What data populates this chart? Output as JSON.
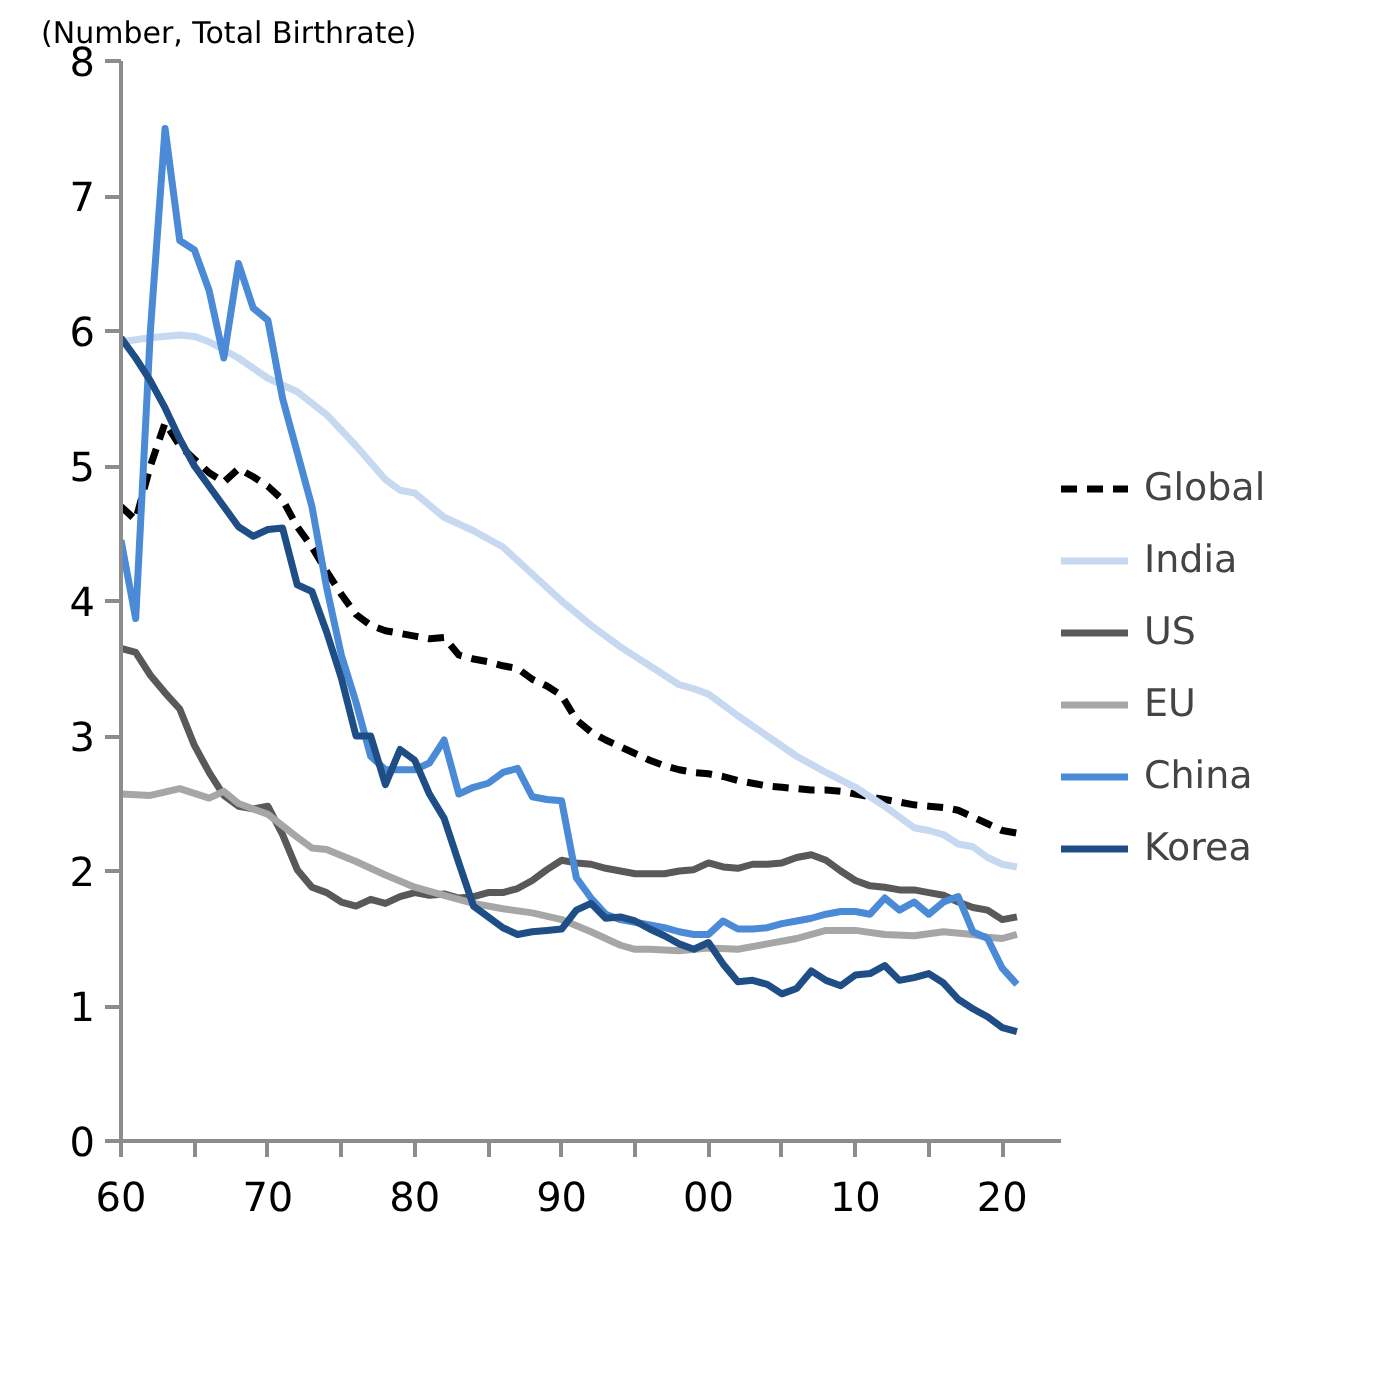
{
  "chart_data": {
    "type": "line",
    "ylabel": "(Number, Total Birthrate)",
    "xlim": [
      1960,
      2024
    ],
    "ylim": [
      0,
      8
    ],
    "xticks": [
      {
        "value": 1960,
        "label": "60"
      },
      {
        "value": 1965,
        "label": null
      },
      {
        "value": 1970,
        "label": "70"
      },
      {
        "value": 1975,
        "label": null
      },
      {
        "value": 1980,
        "label": "80"
      },
      {
        "value": 1985,
        "label": null
      },
      {
        "value": 1990,
        "label": "90"
      },
      {
        "value": 1995,
        "label": null
      },
      {
        "value": 2000,
        "label": "00"
      },
      {
        "value": 2005,
        "label": null
      },
      {
        "value": 2010,
        "label": "10"
      },
      {
        "value": 2015,
        "label": null
      },
      {
        "value": 2020,
        "label": "20"
      }
    ],
    "yticks": [
      0,
      1,
      2,
      3,
      4,
      5,
      6,
      7,
      8
    ],
    "grid": false,
    "legend": "right",
    "marker": "none",
    "series": [
      {
        "name": "Global",
        "color": "#000000",
        "line_style": "dashed",
        "x": [
          1960,
          1961,
          1962,
          1963,
          1964,
          1965,
          1966,
          1967,
          1968,
          1969,
          1970,
          1971,
          1972,
          1973,
          1974,
          1975,
          1976,
          1977,
          1978,
          1979,
          1980,
          1981,
          1982,
          1983,
          1984,
          1985,
          1986,
          1987,
          1988,
          1989,
          1990,
          1991,
          1992,
          1993,
          1994,
          1995,
          1996,
          1997,
          1998,
          1999,
          2000,
          2001,
          2002,
          2003,
          2004,
          2005,
          2006,
          2007,
          2008,
          2009,
          2010,
          2011,
          2012,
          2013,
          2014,
          2015,
          2016,
          2017,
          2018,
          2019,
          2020,
          2021
        ],
        "values": [
          4.7,
          4.6,
          5.0,
          5.32,
          5.15,
          5.05,
          4.95,
          4.88,
          4.98,
          4.92,
          4.85,
          4.75,
          4.55,
          4.4,
          4.22,
          4.05,
          3.9,
          3.82,
          3.78,
          3.76,
          3.74,
          3.72,
          3.73,
          3.6,
          3.57,
          3.55,
          3.52,
          3.5,
          3.42,
          3.37,
          3.3,
          3.12,
          3.03,
          2.97,
          2.92,
          2.87,
          2.82,
          2.78,
          2.75,
          2.73,
          2.72,
          2.7,
          2.67,
          2.65,
          2.63,
          2.62,
          2.61,
          2.6,
          2.6,
          2.59,
          2.57,
          2.55,
          2.53,
          2.51,
          2.49,
          2.48,
          2.47,
          2.45,
          2.4,
          2.35,
          2.3,
          2.28
        ]
      },
      {
        "name": "India",
        "color": "#c6d9f0",
        "line_style": "solid",
        "x": [
          1960,
          1962,
          1964,
          1965,
          1966,
          1968,
          1970,
          1972,
          1974,
          1976,
          1978,
          1979,
          1980,
          1982,
          1984,
          1986,
          1988,
          1990,
          1992,
          1994,
          1996,
          1998,
          1999,
          2000,
          2002,
          2004,
          2006,
          2008,
          2010,
          2012,
          2014,
          2015,
          2016,
          2017,
          2018,
          2019,
          2020,
          2021
        ],
        "values": [
          5.92,
          5.95,
          5.97,
          5.96,
          5.92,
          5.8,
          5.65,
          5.55,
          5.38,
          5.15,
          4.9,
          4.82,
          4.8,
          4.62,
          4.52,
          4.4,
          4.2,
          4.0,
          3.82,
          3.66,
          3.52,
          3.38,
          3.35,
          3.31,
          3.15,
          3.0,
          2.85,
          2.73,
          2.62,
          2.48,
          2.32,
          2.3,
          2.27,
          2.2,
          2.18,
          2.1,
          2.05,
          2.03
        ]
      },
      {
        "name": "US",
        "color": "#595959",
        "line_style": "solid",
        "x": [
          1960,
          1961,
          1962,
          1963,
          1964,
          1965,
          1966,
          1967,
          1968,
          1969,
          1970,
          1971,
          1972,
          1973,
          1974,
          1975,
          1976,
          1977,
          1978,
          1979,
          1980,
          1981,
          1982,
          1983,
          1984,
          1985,
          1986,
          1987,
          1988,
          1989,
          1990,
          1991,
          1992,
          1993,
          1994,
          1995,
          1996,
          1997,
          1998,
          1999,
          2000,
          2001,
          2002,
          2003,
          2004,
          2005,
          2006,
          2007,
          2008,
          2009,
          2010,
          2011,
          2012,
          2013,
          2014,
          2015,
          2016,
          2017,
          2018,
          2019,
          2020,
          2021
        ],
        "values": [
          3.65,
          3.62,
          3.45,
          3.32,
          3.2,
          2.93,
          2.73,
          2.56,
          2.48,
          2.46,
          2.48,
          2.27,
          2.01,
          1.88,
          1.84,
          1.77,
          1.74,
          1.79,
          1.76,
          1.81,
          1.84,
          1.82,
          1.83,
          1.8,
          1.81,
          1.84,
          1.84,
          1.87,
          1.93,
          2.01,
          2.08,
          2.06,
          2.05,
          2.02,
          2.0,
          1.98,
          1.98,
          1.98,
          2.0,
          2.01,
          2.06,
          2.03,
          2.02,
          2.05,
          2.05,
          2.06,
          2.1,
          2.12,
          2.08,
          2.0,
          1.93,
          1.89,
          1.88,
          1.86,
          1.86,
          1.84,
          1.82,
          1.77,
          1.73,
          1.71,
          1.64,
          1.66
        ]
      },
      {
        "name": "EU",
        "color": "#a6a6a6",
        "line_style": "solid",
        "x": [
          1960,
          1962,
          1964,
          1966,
          1967,
          1968,
          1970,
          1972,
          1973,
          1974,
          1976,
          1978,
          1980,
          1982,
          1984,
          1986,
          1988,
          1990,
          1992,
          1994,
          1995,
          1996,
          1998,
          2000,
          2002,
          2004,
          2006,
          2008,
          2010,
          2012,
          2014,
          2016,
          2018,
          2019,
          2020,
          2021
        ],
        "values": [
          2.57,
          2.56,
          2.61,
          2.54,
          2.59,
          2.5,
          2.42,
          2.25,
          2.17,
          2.16,
          2.07,
          1.97,
          1.88,
          1.82,
          1.76,
          1.72,
          1.69,
          1.64,
          1.55,
          1.45,
          1.42,
          1.42,
          1.41,
          1.43,
          1.42,
          1.46,
          1.5,
          1.56,
          1.56,
          1.53,
          1.52,
          1.55,
          1.53,
          1.51,
          1.5,
          1.53
        ]
      },
      {
        "name": "China",
        "color": "#4a8ad6",
        "line_style": "solid",
        "x": [
          1960,
          1961,
          1962,
          1963,
          1964,
          1965,
          1966,
          1967,
          1968,
          1969,
          1970,
          1971,
          1972,
          1973,
          1974,
          1975,
          1976,
          1977,
          1978,
          1979,
          1980,
          1981,
          1982,
          1983,
          1984,
          1985,
          1986,
          1987,
          1988,
          1989,
          1990,
          1991,
          1992,
          1993,
          1994,
          1995,
          1996,
          1997,
          1998,
          1999,
          2000,
          2001,
          2002,
          2003,
          2004,
          2005,
          2006,
          2007,
          2008,
          2009,
          2010,
          2011,
          2012,
          2013,
          2014,
          2015,
          2016,
          2017,
          2018,
          2019,
          2020,
          2021
        ],
        "values": [
          4.45,
          3.87,
          6.0,
          7.5,
          6.67,
          6.6,
          6.3,
          5.8,
          6.5,
          6.17,
          6.08,
          5.5,
          5.1,
          4.7,
          4.1,
          3.6,
          3.25,
          2.85,
          2.75,
          2.75,
          2.75,
          2.8,
          2.97,
          2.57,
          2.62,
          2.65,
          2.73,
          2.76,
          2.55,
          2.53,
          2.52,
          1.95,
          1.8,
          1.68,
          1.64,
          1.62,
          1.6,
          1.58,
          1.55,
          1.53,
          1.53,
          1.63,
          1.57,
          1.57,
          1.58,
          1.61,
          1.63,
          1.65,
          1.68,
          1.7,
          1.7,
          1.68,
          1.8,
          1.71,
          1.77,
          1.68,
          1.77,
          1.81,
          1.55,
          1.5,
          1.28,
          1.16
        ]
      },
      {
        "name": "Korea",
        "color": "#1f4e87",
        "line_style": "solid",
        "x": [
          1960,
          1961,
          1962,
          1963,
          1964,
          1965,
          1966,
          1967,
          1968,
          1969,
          1970,
          1971,
          1972,
          1973,
          1974,
          1975,
          1976,
          1977,
          1978,
          1979,
          1980,
          1981,
          1982,
          1983,
          1984,
          1985,
          1986,
          1987,
          1988,
          1989,
          1990,
          1991,
          1992,
          1993,
          1994,
          1995,
          1996,
          1997,
          1998,
          1999,
          2000,
          2001,
          2002,
          2003,
          2004,
          2005,
          2006,
          2007,
          2008,
          2009,
          2010,
          2011,
          2012,
          2013,
          2014,
          2015,
          2016,
          2017,
          2018,
          2019,
          2020,
          2021
        ],
        "values": [
          5.95,
          5.8,
          5.63,
          5.43,
          5.2,
          5.0,
          4.85,
          4.7,
          4.55,
          4.48,
          4.53,
          4.54,
          4.12,
          4.07,
          3.77,
          3.43,
          3.0,
          3.0,
          2.64,
          2.9,
          2.82,
          2.57,
          2.39,
          2.06,
          1.74,
          1.66,
          1.58,
          1.53,
          1.55,
          1.56,
          1.57,
          1.71,
          1.76,
          1.65,
          1.66,
          1.63,
          1.57,
          1.52,
          1.46,
          1.42,
          1.47,
          1.31,
          1.18,
          1.19,
          1.16,
          1.09,
          1.13,
          1.26,
          1.19,
          1.15,
          1.23,
          1.24,
          1.3,
          1.19,
          1.21,
          1.24,
          1.17,
          1.05,
          0.98,
          0.92,
          0.84,
          0.81
        ]
      }
    ]
  }
}
